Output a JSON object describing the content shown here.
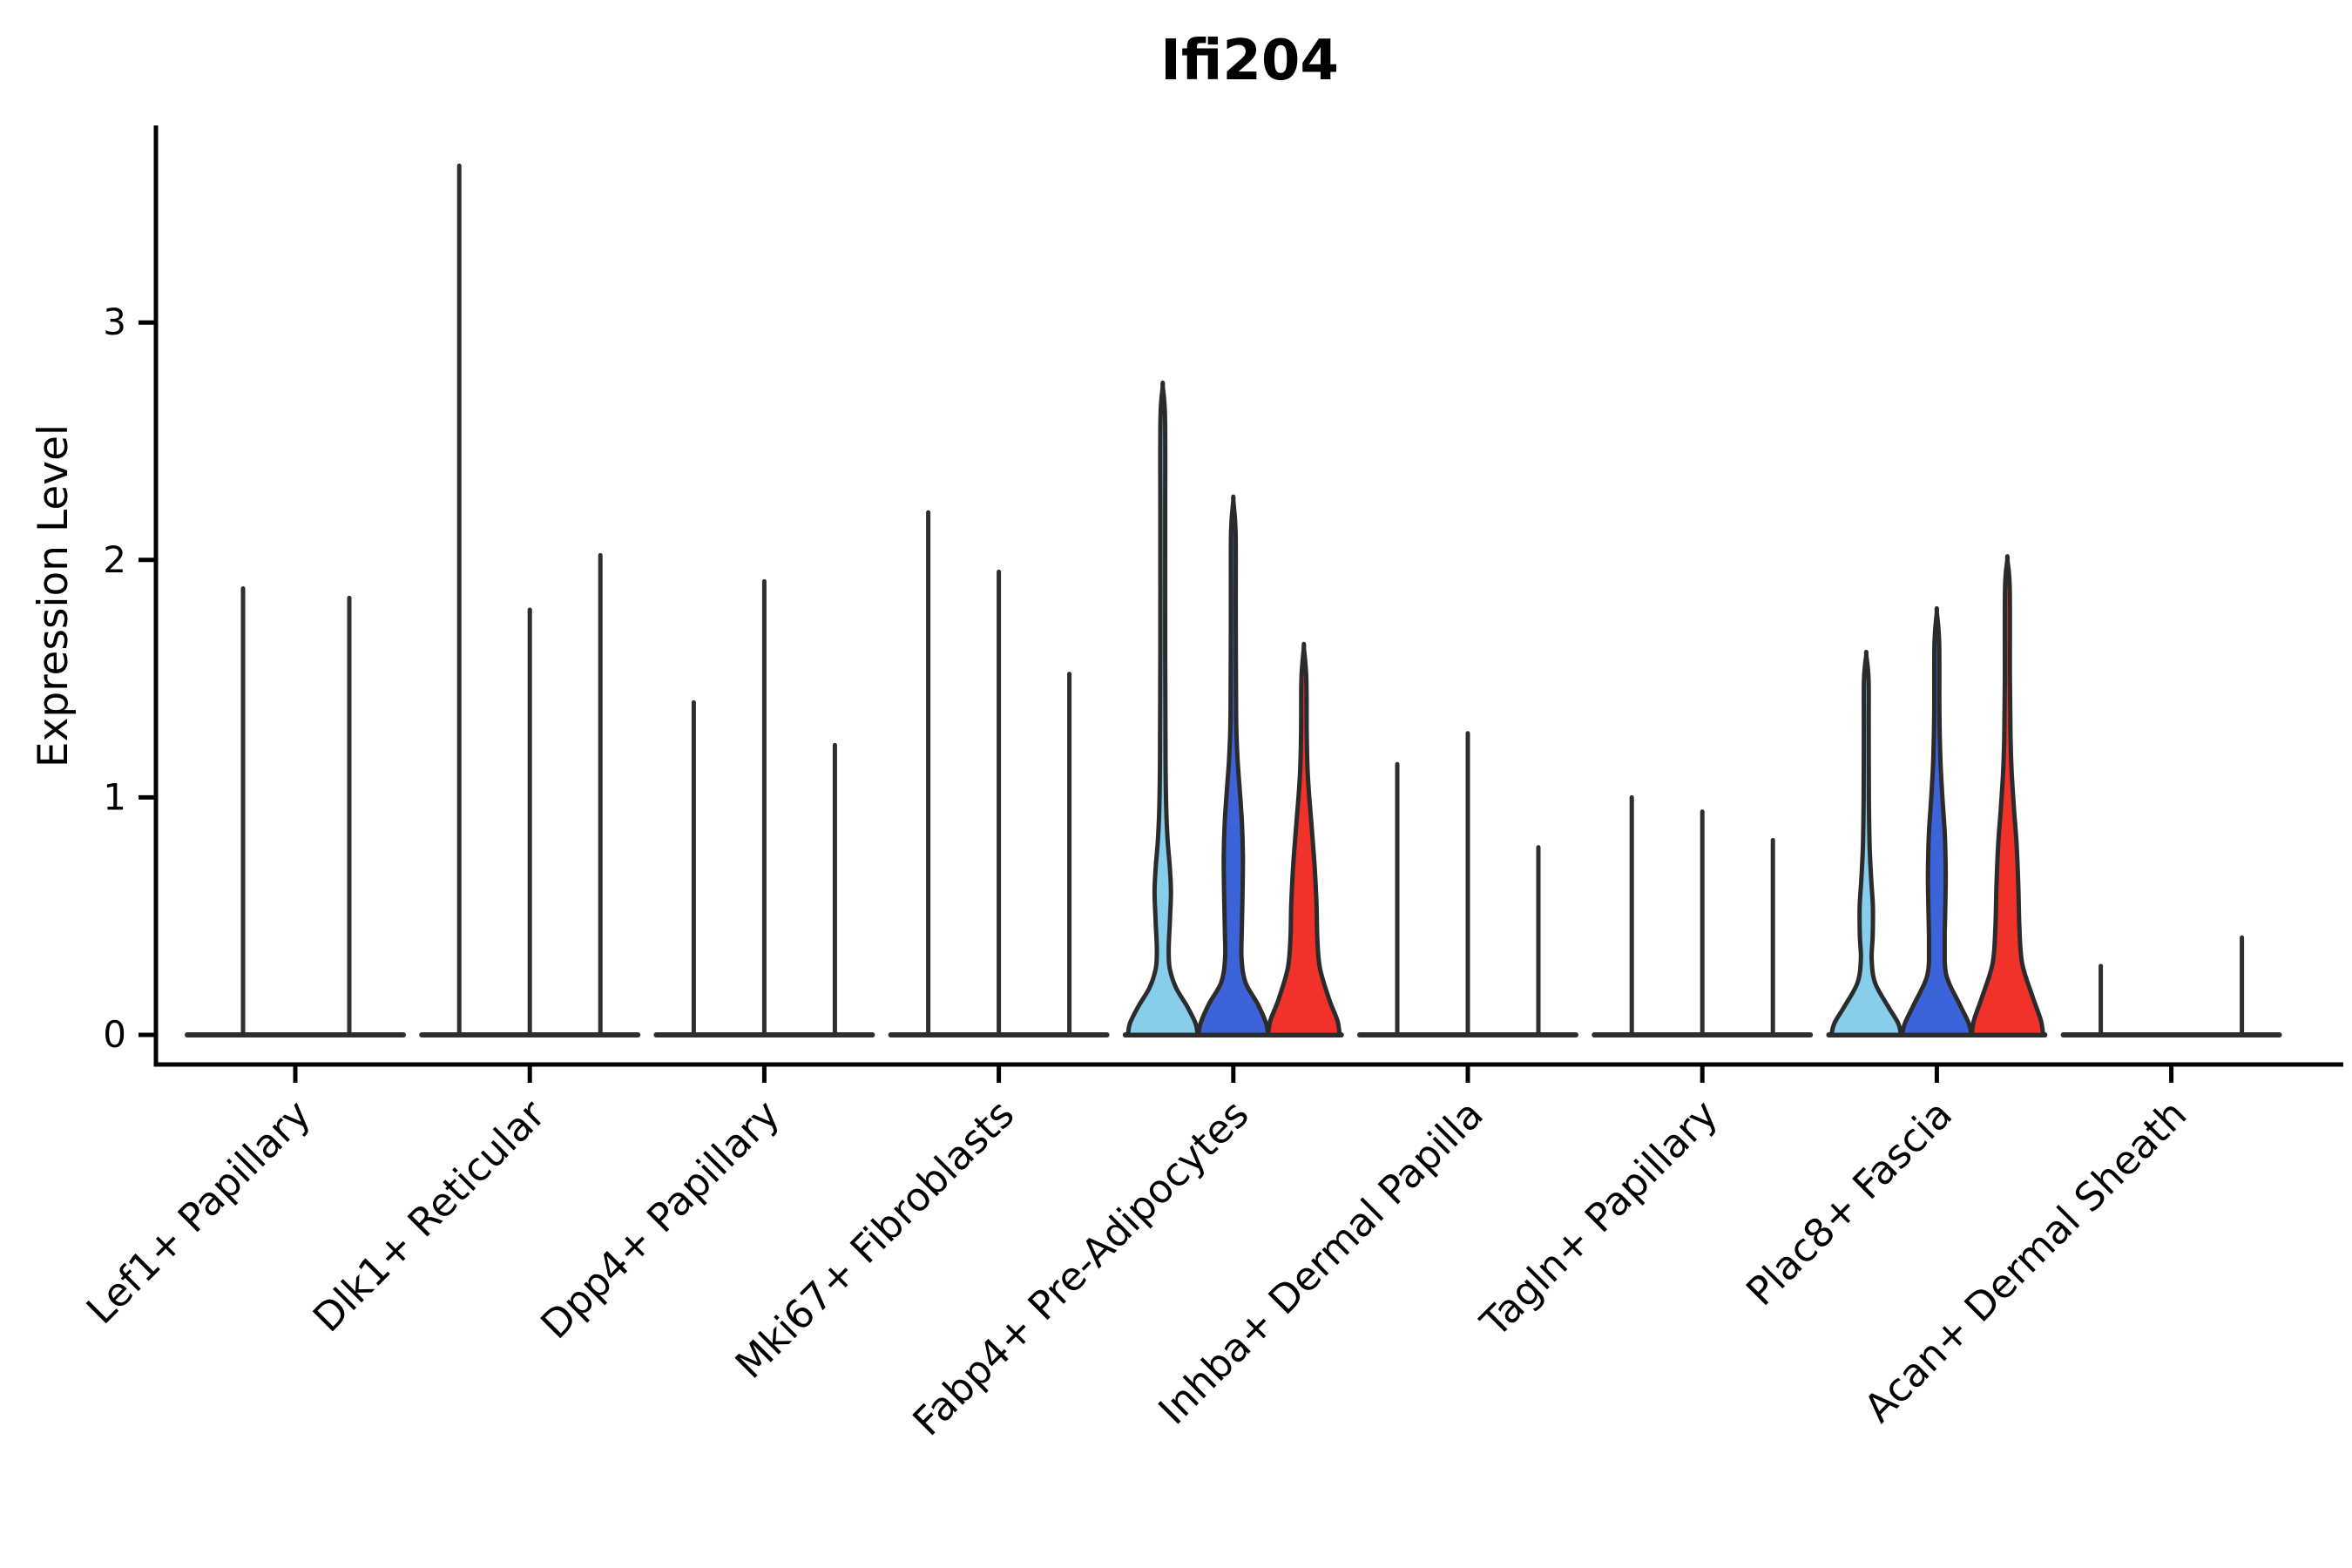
{
  "title": "Ifi204",
  "chart_data": {
    "type": "violin",
    "title": "Ifi204",
    "ylabel": "Expression Level",
    "xlabel": "",
    "yticks": [
      0,
      1,
      2,
      3
    ],
    "ylim": [
      -0.13,
      3.83
    ],
    "grid": false,
    "legend": "none",
    "x_tick_rotation_deg": 45,
    "colors": {
      "outline": "#2B2B2B",
      "spike": "#2E2E2E",
      "axis": "#000000",
      "text": "#000000",
      "lightblue": "#87CEEB",
      "blue": "#3C64D8",
      "red": "#F1322B"
    },
    "note": "3 violins per category; most collapse to thin spikes at 0 with tails to max expression",
    "groups": [
      {
        "label": "Lef1+ Papillary",
        "violins": [
          {
            "style": "spike",
            "max": 1.88,
            "dx": 21
          },
          {
            "style": "flat",
            "max": 0,
            "dx": 0
          },
          {
            "style": "spike",
            "max": 1.84,
            "dx": -19
          }
        ]
      },
      {
        "label": "Dlk1+ Reticular",
        "violins": [
          {
            "style": "spike",
            "max": 3.66,
            "dx": 0
          },
          {
            "style": "spike",
            "max": 1.79,
            "dx": 0
          },
          {
            "style": "spike",
            "max": 2.02,
            "dx": 0
          }
        ]
      },
      {
        "label": "Dpp4+ Papillary",
        "violins": [
          {
            "style": "spike",
            "max": 1.4,
            "dx": 0
          },
          {
            "style": "spike",
            "max": 1.91,
            "dx": 0
          },
          {
            "style": "spike",
            "max": 1.22,
            "dx": 0
          }
        ]
      },
      {
        "label": "Mki67+ Fibroblasts",
        "violins": [
          {
            "style": "spike",
            "max": 2.2,
            "dx": 0
          },
          {
            "style": "spike",
            "max": 1.95,
            "dx": 0
          },
          {
            "style": "spike",
            "max": 1.52,
            "dx": 0
          }
        ]
      },
      {
        "label": "Fabp4+ Pre-Adipocytes",
        "violins": [
          {
            "style": "violin",
            "max": 2.73,
            "dx": 0,
            "color": "lightblue",
            "profile": [
              [
                0,
                40
              ],
              [
                0.05,
                37.5
              ],
              [
                0.12,
                28
              ],
              [
                0.2,
                15
              ],
              [
                0.28,
                8
              ],
              [
                0.36,
                6.8
              ],
              [
                0.48,
                8.2
              ],
              [
                0.6,
                9.4
              ],
              [
                0.7,
                8.2
              ],
              [
                0.82,
                5.6
              ],
              [
                0.95,
                4
              ],
              [
                1.15,
                3.2
              ],
              [
                1.6,
                2.8
              ],
              [
                2.2,
                2.8
              ],
              [
                2.6,
                2.6
              ],
              [
                2.73,
                0
              ]
            ]
          },
          {
            "style": "violin",
            "max": 2.25,
            "dx": 0,
            "color": "blue",
            "profile": [
              [
                0,
                40
              ],
              [
                0.05,
                37.5
              ],
              [
                0.13,
                28
              ],
              [
                0.22,
                14
              ],
              [
                0.32,
                9.5
              ],
              [
                0.45,
                9.8
              ],
              [
                0.6,
                10.6
              ],
              [
                0.75,
                11
              ],
              [
                0.9,
                9.8
              ],
              [
                1.05,
                7
              ],
              [
                1.18,
                4.6
              ],
              [
                1.35,
                3.2
              ],
              [
                1.8,
                2.8
              ],
              [
                2.12,
                2.6
              ],
              [
                2.25,
                0
              ]
            ]
          },
          {
            "style": "violin",
            "max": 1.63,
            "dx": 0,
            "color": "red",
            "profile": [
              [
                0,
                41
              ],
              [
                0.06,
                38.5
              ],
              [
                0.15,
                29
              ],
              [
                0.28,
                18.5
              ],
              [
                0.4,
                15.5
              ],
              [
                0.55,
                14.5
              ],
              [
                0.7,
                12.5
              ],
              [
                0.85,
                9.5
              ],
              [
                1,
                6.2
              ],
              [
                1.12,
                4.2
              ],
              [
                1.28,
                3.2
              ],
              [
                1.5,
                2.8
              ],
              [
                1.63,
                0
              ]
            ]
          }
        ]
      },
      {
        "label": "Inhba+ Dermal Papilla",
        "violins": [
          {
            "style": "spike",
            "max": 1.14,
            "dx": 0
          },
          {
            "style": "spike",
            "max": 1.27,
            "dx": 0
          },
          {
            "style": "spike",
            "max": 0.79,
            "dx": 0
          }
        ]
      },
      {
        "label": "Tagln+ Papillary",
        "violins": [
          {
            "style": "spike",
            "max": 1.0,
            "dx": 0
          },
          {
            "style": "spike",
            "max": 0.94,
            "dx": 0
          },
          {
            "style": "spike",
            "max": 0.82,
            "dx": 0
          }
        ]
      },
      {
        "label": "Plac8+ Fascia",
        "violins": [
          {
            "style": "violin",
            "max": 1.6,
            "dx": 0,
            "color": "lightblue",
            "profile": [
              [
                0,
                40
              ],
              [
                0.05,
                36.5
              ],
              [
                0.12,
                25
              ],
              [
                0.22,
                10
              ],
              [
                0.32,
                6.2
              ],
              [
                0.42,
                7.4
              ],
              [
                0.54,
                7.6
              ],
              [
                0.66,
                5.6
              ],
              [
                0.8,
                3.8
              ],
              [
                1,
                3
              ],
              [
                1.3,
                2.8
              ],
              [
                1.5,
                2.6
              ],
              [
                1.6,
                0
              ]
            ]
          },
          {
            "style": "violin",
            "max": 1.78,
            "dx": 0,
            "color": "blue",
            "profile": [
              [
                0,
                40
              ],
              [
                0.05,
                36.5
              ],
              [
                0.13,
                26
              ],
              [
                0.25,
                11
              ],
              [
                0.38,
                9
              ],
              [
                0.52,
                9.6
              ],
              [
                0.68,
                10.2
              ],
              [
                0.84,
                9.2
              ],
              [
                1,
                6.4
              ],
              [
                1.15,
                4.2
              ],
              [
                1.35,
                3
              ],
              [
                1.65,
                2.7
              ],
              [
                1.78,
                0
              ]
            ]
          },
          {
            "style": "violin",
            "max": 2.0,
            "dx": 0,
            "color": "red",
            "profile": [
              [
                0,
                41
              ],
              [
                0.06,
                38.5
              ],
              [
                0.16,
                29
              ],
              [
                0.3,
                17
              ],
              [
                0.45,
                13.8
              ],
              [
                0.62,
                12.6
              ],
              [
                0.8,
                10.6
              ],
              [
                0.95,
                7.6
              ],
              [
                1.1,
                5
              ],
              [
                1.25,
                3.6
              ],
              [
                1.5,
                2.9
              ],
              [
                1.88,
                2.7
              ],
              [
                2,
                0
              ]
            ]
          }
        ]
      },
      {
        "label": "Acan+ Dermal Sheath",
        "violins": [
          {
            "style": "spike",
            "max": 0.29,
            "dx": 0
          },
          {
            "style": "flat",
            "max": 0,
            "dx": 0
          },
          {
            "style": "spike",
            "max": 0.41,
            "dx": 0
          }
        ]
      }
    ]
  }
}
